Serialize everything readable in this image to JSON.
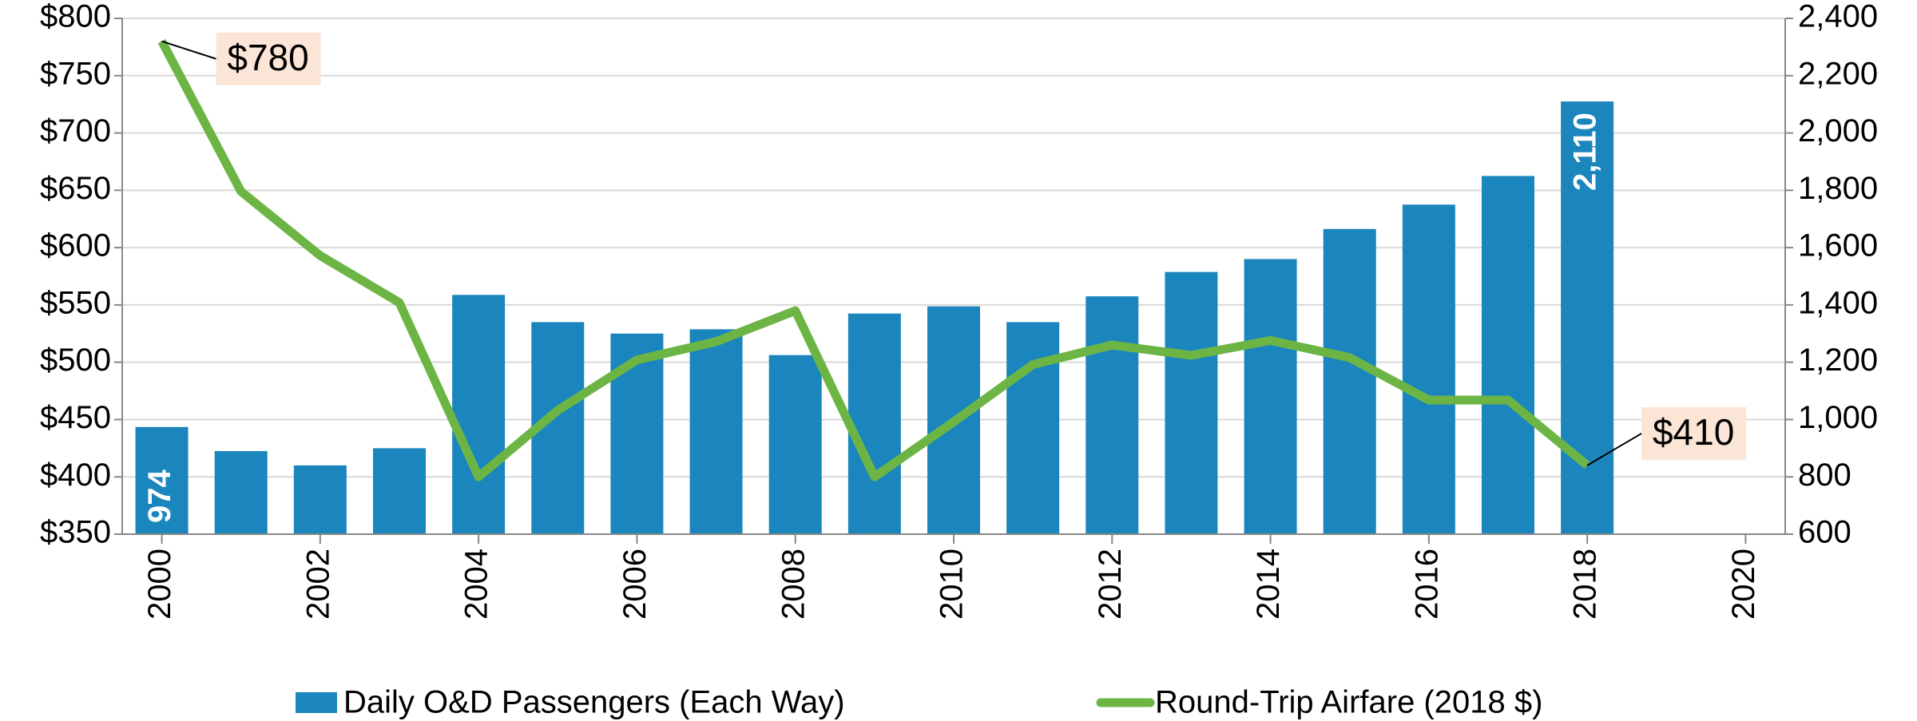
{
  "chart_data": {
    "type": "bar",
    "x": [
      2000,
      2001,
      2002,
      2003,
      2004,
      2005,
      2006,
      2007,
      2008,
      2009,
      2010,
      2011,
      2012,
      2013,
      2014,
      2015,
      2016,
      2017,
      2018
    ],
    "series": [
      {
        "name": "Daily O&D Passengers (Each Way)",
        "color": "#1b86bd",
        "type": "bar",
        "axis": "y2",
        "values": [
          974,
          890,
          840,
          900,
          1435,
          1340,
          1300,
          1315,
          1225,
          1370,
          1395,
          1340,
          1430,
          1515,
          1560,
          1665,
          1750,
          1850,
          2110
        ],
        "value_labels": [
          "974",
          null,
          null,
          null,
          null,
          null,
          null,
          null,
          null,
          null,
          null,
          null,
          null,
          null,
          null,
          null,
          null,
          null,
          "2,110"
        ]
      },
      {
        "name": "Round-Trip Airfare (2018 $)",
        "color": "#6cb545",
        "type": "line",
        "values": [
          780,
          649,
          593,
          552,
          400,
          458,
          502,
          518,
          545,
          400,
          448,
          498,
          515,
          506,
          519,
          504,
          467,
          467,
          410
        ],
        "value_labels": [
          "$780",
          null,
          null,
          null,
          null,
          null,
          null,
          null,
          null,
          null,
          null,
          null,
          null,
          null,
          null,
          null,
          null,
          null,
          "$410"
        ]
      }
    ],
    "xlim": [
      1999.5,
      2020.5
    ],
    "xticks": [
      2000,
      2002,
      2004,
      2006,
      2008,
      2010,
      2012,
      2014,
      2016,
      2018,
      2020
    ],
    "ylim": [
      350,
      800
    ],
    "yticks": [
      {
        "value": 350,
        "label": "$350"
      },
      {
        "value": 400,
        "label": "$400"
      },
      {
        "value": 450,
        "label": "$450"
      },
      {
        "value": 500,
        "label": "$500"
      },
      {
        "value": 550,
        "label": "$550"
      },
      {
        "value": 600,
        "label": "$600"
      },
      {
        "value": 650,
        "label": "$650"
      },
      {
        "value": 700,
        "label": "$700"
      },
      {
        "value": 750,
        "label": "$750"
      },
      {
        "value": 800,
        "label": "$800"
      }
    ],
    "y2lim": [
      600,
      2400
    ],
    "y2ticks": [
      600,
      800,
      {
        "value": 1000,
        "label": "1,000"
      },
      {
        "value": 1200,
        "label": "1,200"
      },
      {
        "value": 1400,
        "label": "1,400"
      },
      {
        "value": 1600,
        "label": "1,600"
      },
      {
        "value": 1800,
        "label": "1,800"
      },
      {
        "value": 2000,
        "label": "2,000"
      },
      {
        "value": 2200,
        "label": "2,200"
      },
      {
        "value": 2400,
        "label": "2,400"
      }
    ],
    "grid": true
  }
}
